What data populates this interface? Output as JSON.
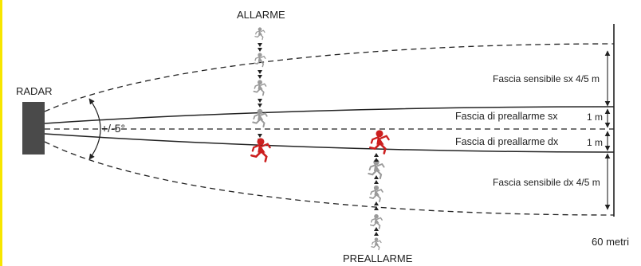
{
  "labels": {
    "radar": "RADAR",
    "angle": "+/-5°",
    "alarm": "ALLARME",
    "prealarm": "PREALLARME",
    "band_sensitive_left": "Fascia sensibile sx 4/5 m",
    "band_prealarm_left": "Fascia di preallarme sx",
    "band_prealarm_right": "Fascia di preallarme dx",
    "band_sensitive_right": "Fascia sensibile dx 4/5 m",
    "width_prealarm_left": "1 m",
    "width_prealarm_right": "1 m",
    "distance": "60 metri"
  },
  "colors": {
    "accent_bar": "#f7e600",
    "radar_box": "#4a4a4a",
    "line": "#222222",
    "runner_alarm": "#cc1f1f",
    "runner_grey": "#9a9a9a"
  },
  "icons": {
    "runner": "running-person-icon"
  }
}
